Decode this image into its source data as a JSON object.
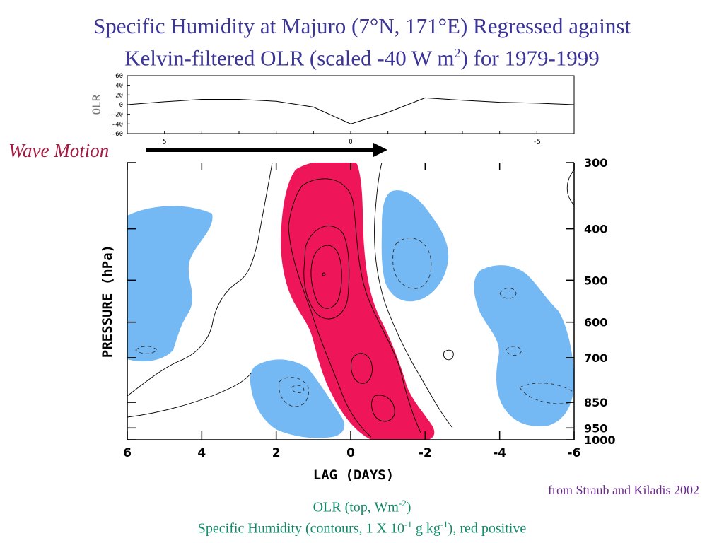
{
  "title_line1": "Specific Humidity at Majuro (7°N, 171°E) Regressed against",
  "title_line2_a": "Kelvin-filtered OLR (scaled -40 W m",
  "title_line2_sup": "2",
  "title_line2_b": ") for 1979-1999",
  "wave_label": "Wave Motion",
  "credit": "from Straub and Kiladis 2002",
  "caption1_a": "OLR (top, Wm",
  "caption1_sup": "-2",
  "caption1_b": ")",
  "caption2_a": "Specific Humidity (contours, 1 X 10",
  "caption2_sup1": "-1",
  "caption2_b": " g kg",
  "caption2_sup2": "-1",
  "caption2_c": "), red positive",
  "colors": {
    "positive": "#ee1558",
    "negative": "#74b8f4",
    "title": "#3a3596",
    "caption": "#128a6a"
  },
  "chart_data": [
    {
      "type": "line",
      "ylabel": "OLR",
      "x": [
        6,
        5,
        4,
        3,
        2,
        1,
        0,
        -1,
        -2,
        -3,
        -4,
        -5,
        -6
      ],
      "x_ticks": [
        "5",
        "0",
        "-5"
      ],
      "y_ticks": [
        "60",
        "40",
        "20",
        "0",
        "-20",
        "-40",
        "-60"
      ],
      "ylim": [
        -60,
        60
      ],
      "xlim": [
        6,
        -6
      ],
      "series": [
        {
          "values": [
            0,
            6,
            11,
            11,
            7,
            -5,
            -40,
            -16,
            14,
            9,
            5,
            3,
            0
          ]
        }
      ]
    },
    {
      "type": "heatmap",
      "xlabel": "LAG (DAYS)",
      "ylabel": "PRESSURE (hPa)",
      "x_ticks": [
        "6",
        "4",
        "2",
        "0",
        "-2",
        "-4",
        "-6"
      ],
      "y_ticks": [
        "300",
        "400",
        "500",
        "600",
        "700",
        "850",
        "950",
        "1000"
      ],
      "xlim": [
        6,
        -6
      ],
      "ylim": [
        1000,
        300
      ],
      "contour_interval": "1 X 10^-1 g kg^-1",
      "positive_color": "red",
      "negative_color": "blue"
    }
  ]
}
